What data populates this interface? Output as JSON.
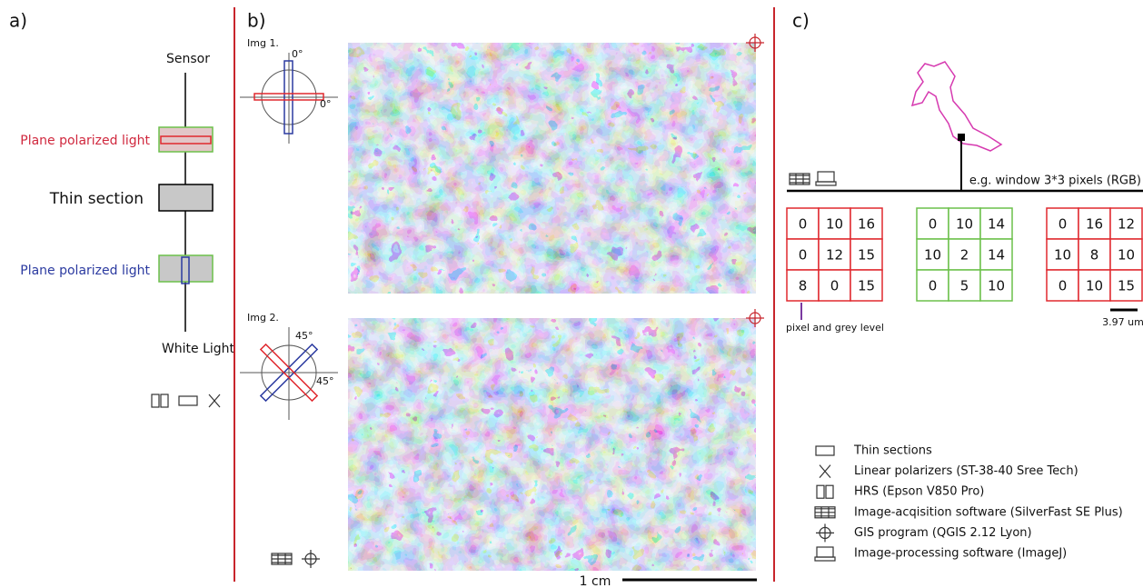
{
  "panel_a": {
    "label": "a)",
    "sensor": "Sensor",
    "top_filter": "Plane polarized light",
    "thin_section": "Thin section",
    "bottom_filter": "Plane polarized light",
    "light": "White Light"
  },
  "panel_b": {
    "label": "b)",
    "img1": {
      "label": "Img 1.",
      "angle_v": "0°",
      "angle_h": "0°"
    },
    "img2": {
      "label": "Img 2.",
      "angle_a": "45°",
      "angle_b": "45°"
    },
    "scale": "1 cm"
  },
  "panel_c": {
    "label": "c)",
    "window": "e.g. window 3*3 pixels (RGB)",
    "grids": [
      {
        "color": "#e0282e",
        "rows": [
          [
            0,
            10,
            16
          ],
          [
            0,
            12,
            15
          ],
          [
            8,
            0,
            15
          ]
        ]
      },
      {
        "color": "#6cc04a",
        "rows": [
          [
            0,
            10,
            14
          ],
          [
            10,
            2,
            14
          ],
          [
            0,
            5,
            10
          ]
        ]
      },
      {
        "color": "#e0282e",
        "rows": [
          [
            0,
            16,
            12
          ],
          [
            10,
            8,
            10
          ],
          [
            0,
            10,
            15
          ]
        ]
      }
    ],
    "pixel_note": "pixel and grey level",
    "scale": "3.97 um"
  },
  "legend": [
    "Thin sections",
    "Linear polarizers (ST-38-40 Sree Tech)",
    "HRS (Epson V850 Pro)",
    "Image-acqisition software (SilverFast SE Plus)",
    "GIS program (QGIS 2.12 Lyon)",
    "Image-processing software (ImageJ)"
  ]
}
